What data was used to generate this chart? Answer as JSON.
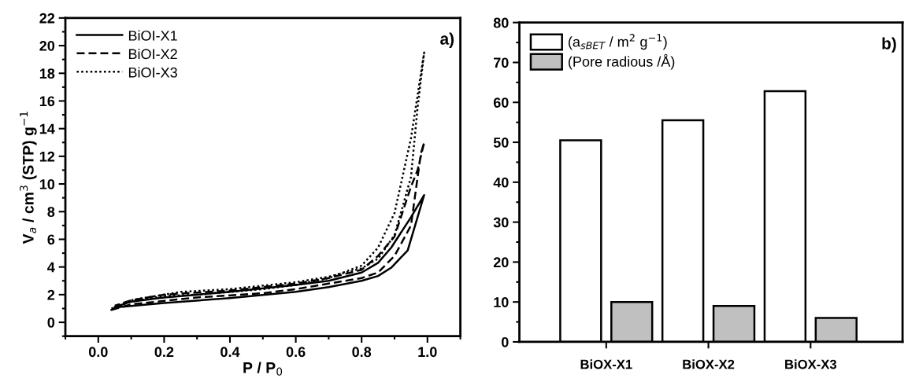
{
  "chart_data": [
    {
      "type": "line",
      "xlabel": "P / P$_{0}$",
      "ylabel": "V$_{a}$ / cm$^{3}$ (STP) g$^{−1}$",
      "annotations": [
        "a)"
      ],
      "legend": "top left",
      "grid": false,
      "marker": "none",
      "xlim": [
        -0.1,
        1.1
      ],
      "xticks": [
        {
          "value": 0,
          "label": "0.0"
        },
        0.2,
        0.4,
        0.6,
        0.8,
        {
          "value": 1,
          "label": "1.0"
        }
      ],
      "ylim": [
        -1,
        22
      ],
      "yticks": [
        0,
        2,
        4,
        6,
        8,
        10,
        12,
        14,
        16,
        18,
        20,
        22
      ],
      "series": [
        {
          "name": "BiOI-X1",
          "color": "#000000",
          "line_style": "solid",
          "x": [
            0.04,
            0.06,
            0.2,
            0.4,
            0.6,
            0.7,
            0.8,
            0.85,
            0.89,
            0.94,
            0.99,
            0.95,
            0.89,
            0.85,
            0.8,
            0.7,
            0.6,
            0.4,
            0.2,
            0.1,
            0.05
          ],
          "values": [
            0.9,
            1.1,
            1.4,
            1.75,
            2.2,
            2.55,
            3.0,
            3.35,
            3.95,
            5.2,
            9.2,
            7.6,
            5.4,
            4.3,
            3.6,
            3.0,
            2.7,
            2.2,
            1.8,
            1.5,
            1.1
          ]
        },
        {
          "name": "BiOI-X2",
          "color": "#000000",
          "line_style": "dashed",
          "x": [
            0.04,
            0.1,
            0.3,
            0.5,
            0.6,
            0.7,
            0.8,
            0.85,
            0.9,
            0.95,
            0.98,
            0.99,
            0.97,
            0.95,
            0.9,
            0.85,
            0.8,
            0.7,
            0.6,
            0.4,
            0.2,
            0.1,
            0.05
          ],
          "values": [
            0.9,
            1.3,
            1.8,
            2.1,
            2.4,
            2.8,
            3.2,
            3.6,
            4.8,
            7.0,
            12.2,
            13.0,
            11.0,
            9.8,
            6.2,
            4.8,
            3.8,
            3.2,
            2.8,
            2.3,
            2.0,
            1.6,
            1.2
          ]
        },
        {
          "name": "BiOI-X3",
          "color": "#000000",
          "line_style": "dotted",
          "x": [
            0.04,
            0.1,
            0.2,
            0.3,
            0.5,
            0.6,
            0.7,
            0.8,
            0.85,
            0.9,
            0.95,
            0.99,
            0.97,
            0.95,
            0.9,
            0.85,
            0.8,
            0.7,
            0.6,
            0.4,
            0.25,
            0.1,
            0.05
          ],
          "values": [
            1.0,
            1.5,
            1.9,
            2.0,
            2.4,
            2.7,
            3.2,
            4.1,
            5.4,
            7.9,
            13.3,
            19.5,
            15.5,
            10.5,
            6.3,
            4.6,
            3.9,
            3.3,
            2.9,
            2.4,
            2.2,
            1.6,
            1.1
          ]
        }
      ]
    },
    {
      "type": "bar",
      "annotations": [
        "b)"
      ],
      "legend": "top left",
      "grid": false,
      "categories": [
        "BiOX-X1",
        "BiOX-X2",
        "BiOX-X3"
      ],
      "ylim": [
        0,
        80
      ],
      "yticks": [
        0,
        10,
        20,
        30,
        40,
        50,
        60,
        70,
        80
      ],
      "series": [
        {
          "name": "(a$_{sBET}$ / m$^{2}$ g$^{−1}$)",
          "color": "#ffffff",
          "values": [
            50.5,
            55.5,
            62.8
          ]
        },
        {
          "name": "(Pore radious /Å)",
          "color": "#c0c0c0",
          "values": [
            10,
            9,
            6
          ]
        }
      ]
    }
  ]
}
